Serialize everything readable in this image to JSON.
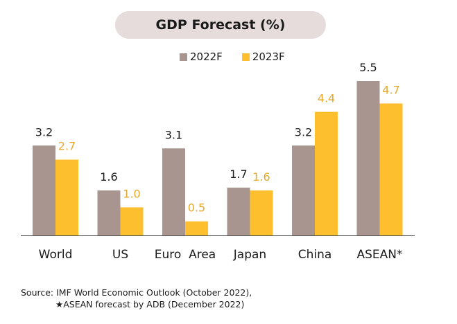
{
  "colors": {
    "series_2022": "#a8958f",
    "series_2023": "#fdbf2d",
    "label_2023": "#e8a92a",
    "axis": "#555555"
  },
  "chart_data": {
    "type": "bar",
    "title": "GDP Forecast (%)",
    "categories": [
      "World",
      "US",
      "Euro  Area",
      "Japan",
      "China",
      "ASEAN*"
    ],
    "series": [
      {
        "name": "2022F",
        "values": [
          3.2,
          1.6,
          3.1,
          1.7,
          3.2,
          5.5
        ]
      },
      {
        "name": "2023F",
        "values": [
          2.7,
          1.0,
          0.5,
          1.6,
          4.4,
          4.7
        ]
      }
    ],
    "value_labels": [
      [
        "3.2",
        "1.6",
        "3.1",
        "1.7",
        "3.2",
        "5.5"
      ],
      [
        "2.7",
        "1.0",
        "0.5",
        "1.6",
        "4.4",
        "4.7"
      ]
    ],
    "ylim": [
      0,
      5.5
    ],
    "grid": false,
    "legend_position": "top-center"
  },
  "footer": {
    "source_line1": "Source: IMF World Economic Outlook (October 2022),",
    "source_line2": "★ASEAN forecast by ADB (December 2022)"
  }
}
